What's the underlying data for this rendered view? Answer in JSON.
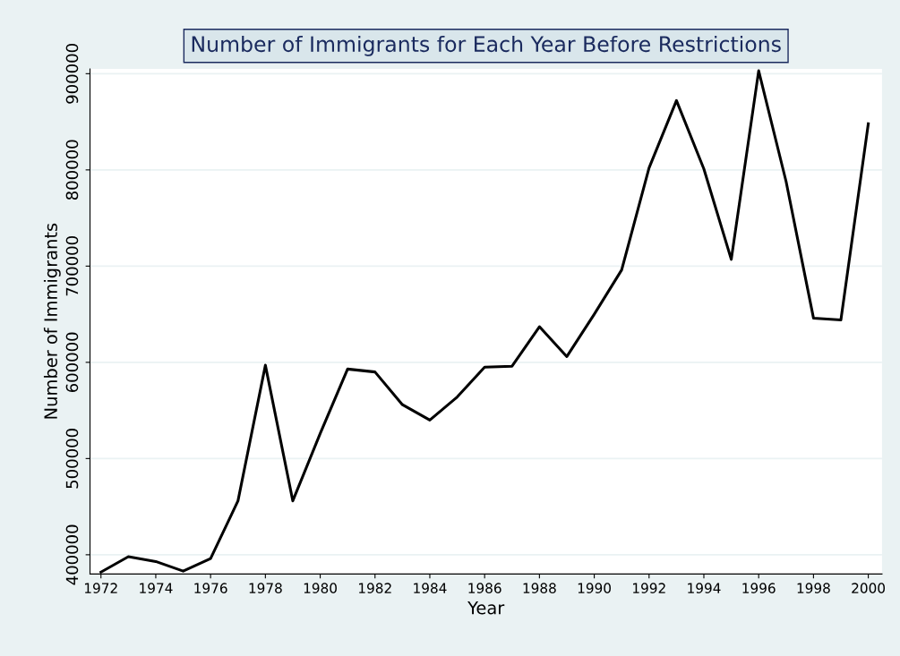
{
  "chart_data": {
    "type": "line",
    "title": "Number of Immigrants for Each Year Before Restrictions",
    "xlabel": "Year",
    "ylabel": "Number of Immigrants",
    "x": [
      1972,
      1973,
      1974,
      1975,
      1976,
      1977,
      1978,
      1979,
      1980,
      1981,
      1982,
      1983,
      1984,
      1985,
      1986,
      1987,
      1988,
      1989,
      1990,
      1991,
      1992,
      1993,
      1994,
      1995,
      1996,
      1997,
      1998,
      1999,
      2000
    ],
    "series": [
      {
        "color": "#000000",
        "values": [
          382000,
          398000,
          393000,
          383000,
          396000,
          456000,
          597000,
          456000,
          526000,
          593000,
          590000,
          556000,
          540000,
          564000,
          595000,
          596000,
          637000,
          606000,
          650000,
          696000,
          802000,
          872000,
          801000,
          707000,
          903000,
          788000,
          646000,
          644000,
          848000
        ]
      }
    ],
    "xlim": [
      1971.6,
      2000.5
    ],
    "ylim": [
      380000,
      905000
    ],
    "xticks": [
      1972,
      1974,
      1976,
      1978,
      1980,
      1982,
      1984,
      1986,
      1988,
      1990,
      1992,
      1994,
      1996,
      1998,
      2000
    ],
    "yticks": [
      400000,
      500000,
      600000,
      700000,
      800000,
      900000
    ],
    "grid": "y",
    "legend": false,
    "marker": "none",
    "line_style": "solid"
  }
}
